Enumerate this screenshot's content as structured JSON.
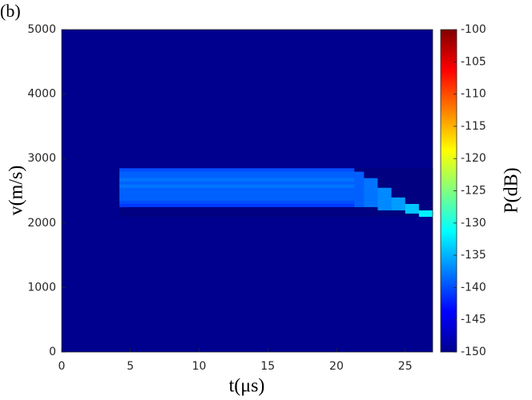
{
  "chart_data": {
    "type": "heatmap",
    "panel": "(b)",
    "xlabel": "t(μs)",
    "ylabel": "v(m/s)",
    "colorbar_label": "P(dB)",
    "xlim": [
      0,
      27
    ],
    "xticks": [
      0,
      5,
      10,
      15,
      20,
      25
    ],
    "ylim": [
      0,
      5000
    ],
    "yticks": [
      0,
      1000,
      2000,
      3000,
      4000,
      5000
    ],
    "clim": [
      -150,
      -100
    ],
    "cticks": [
      -150,
      -145,
      -140,
      -135,
      -130,
      -125,
      -120,
      -115,
      -110,
      -105,
      -100
    ],
    "colormap": "jet",
    "xbins": [
      4.2,
      21.3,
      22,
      23,
      24,
      25,
      26,
      27
    ],
    "ybins": [
      2100,
      2150,
      2200,
      2250,
      2300,
      2350,
      2400,
      2450,
      2500,
      2550,
      2600,
      2650,
      2700,
      2750,
      2800,
      2850
    ],
    "z": [
      [
        -150,
        -150,
        -150,
        -150,
        -150,
        -150,
        -132
      ],
      [
        -150,
        -150,
        -150,
        -150,
        -150,
        -134,
        -132
      ],
      [
        -150,
        -150,
        -150,
        -137,
        -136,
        -134,
        -150
      ],
      [
        -141,
        -139,
        -138,
        -137,
        -136,
        -134,
        -150
      ],
      [
        -140,
        -139,
        -138,
        -137,
        -136,
        -150,
        -150
      ],
      [
        -139,
        -139,
        -138,
        -137,
        -136,
        -150,
        -150
      ],
      [
        -139,
        -139,
        -138,
        -137,
        -150,
        -150,
        -150
      ],
      [
        -139,
        -139,
        -138,
        -137,
        -150,
        -150,
        -150
      ],
      [
        -139,
        -139,
        -138,
        -137,
        -150,
        -150,
        -150
      ],
      [
        -138,
        -139,
        -138,
        -150,
        -150,
        -150,
        -150
      ],
      [
        -139,
        -139,
        -138,
        -150,
        -150,
        -150,
        -150
      ],
      [
        -138,
        -139,
        -138,
        -150,
        -150,
        -150,
        -150
      ],
      [
        -139,
        -139,
        -150,
        -150,
        -150,
        -150,
        -150
      ],
      [
        -139,
        -139,
        -150,
        -150,
        -150,
        -150,
        -150
      ],
      [
        -140,
        -150,
        -150,
        -150,
        -150,
        -150,
        -150
      ]
    ]
  }
}
